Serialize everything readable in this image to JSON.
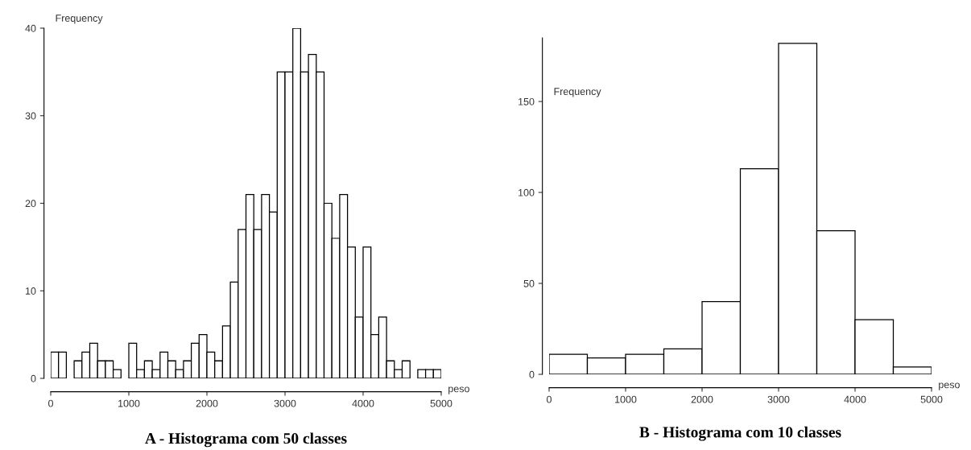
{
  "chart_data": [
    {
      "type": "histogram",
      "title": "A - Histograma com 50 classes",
      "xlabel": "peso",
      "ylabel": "Frequency",
      "bins": [
        0,
        100,
        200,
        300,
        400,
        500,
        600,
        700,
        800,
        900,
        1000,
        1100,
        1200,
        1300,
        1400,
        1500,
        1600,
        1700,
        1800,
        1900,
        2000,
        2100,
        2200,
        2300,
        2400,
        2500,
        2600,
        2700,
        2800,
        2900,
        3000,
        3100,
        3200,
        3300,
        3400,
        3500,
        3600,
        3700,
        3800,
        3900,
        4000,
        4100,
        4200,
        4300,
        4400,
        4500,
        4600,
        4700,
        4800,
        4900,
        5000
      ],
      "values": [
        3,
        3,
        0,
        2,
        3,
        4,
        2,
        2,
        1,
        0,
        4,
        1,
        2,
        1,
        3,
        2,
        1,
        2,
        4,
        5,
        3,
        2,
        6,
        11,
        17,
        21,
        17,
        21,
        19,
        35,
        35,
        40,
        35,
        37,
        35,
        20,
        16,
        21,
        15,
        7,
        15,
        5,
        7,
        2,
        1,
        2,
        0,
        1,
        1,
        1
      ],
      "color": "#ffffff",
      "xlim": [
        0,
        5000
      ],
      "xticks": [
        0,
        1000,
        2000,
        3000,
        4000,
        5000
      ],
      "ylim": [
        0,
        40
      ],
      "yticks": [
        0,
        10,
        20,
        30,
        40
      ],
      "grid": false
    },
    {
      "type": "histogram",
      "title": "B - Histograma com 10 classes",
      "xlabel": "peso",
      "ylabel": "Frequency",
      "bins": [
        0,
        500,
        1000,
        1500,
        2000,
        2500,
        3000,
        3500,
        4000,
        4500,
        5000
      ],
      "values": [
        11,
        9,
        11,
        14,
        40,
        113,
        182,
        79,
        30,
        4
      ],
      "color": "#ffffff",
      "xlim": [
        0,
        5000
      ],
      "xticks": [
        0,
        1000,
        2000,
        3000,
        4000,
        5000
      ],
      "ylim": [
        0,
        185
      ],
      "yticks": [
        0,
        50,
        100,
        150
      ],
      "grid": false
    }
  ]
}
